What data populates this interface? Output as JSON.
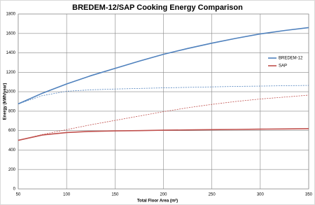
{
  "chart_data": {
    "type": "line",
    "title": "BREDEM-12/SAP Cooking Energy Comparison",
    "x_label": "Total Floor Area (m²)",
    "y_label": "Energy (kWh/year)",
    "x": [
      50,
      75,
      100,
      125,
      150,
      175,
      200,
      225,
      250,
      275,
      300,
      325,
      350
    ],
    "series": [
      {
        "name": "BREDEM-12",
        "color": "#4f81bd",
        "values": [
          875,
          985,
          1080,
          1165,
          1240,
          1315,
          1385,
          1445,
          1500,
          1550,
          1595,
          1630,
          1660
        ]
      },
      {
        "name": "SAP",
        "color": "#c0504d",
        "values": [
          500,
          555,
          580,
          592,
          597,
          600,
          604,
          607,
          610,
          612,
          615,
          617,
          620
        ]
      },
      {
        "color": "#4f81bd",
        "dashed": true,
        "values": [
          875,
          960,
          1005,
          1020,
          1028,
          1034,
          1040,
          1045,
          1050,
          1055,
          1058,
          1062,
          1065
        ]
      },
      {
        "color": "#c0504d",
        "dashed": true,
        "values": [
          500,
          560,
          610,
          660,
          705,
          750,
          795,
          835,
          870,
          900,
          925,
          945,
          965
        ]
      }
    ],
    "xlim": [
      50,
      350
    ],
    "xticks": [
      50,
      100,
      150,
      200,
      250,
      300,
      350
    ],
    "ylim": [
      0,
      1800
    ],
    "yticks": [
      0,
      200,
      400,
      600,
      800,
      1000,
      1200,
      1400,
      1600,
      1800
    ],
    "grid": true,
    "legend": "right"
  }
}
